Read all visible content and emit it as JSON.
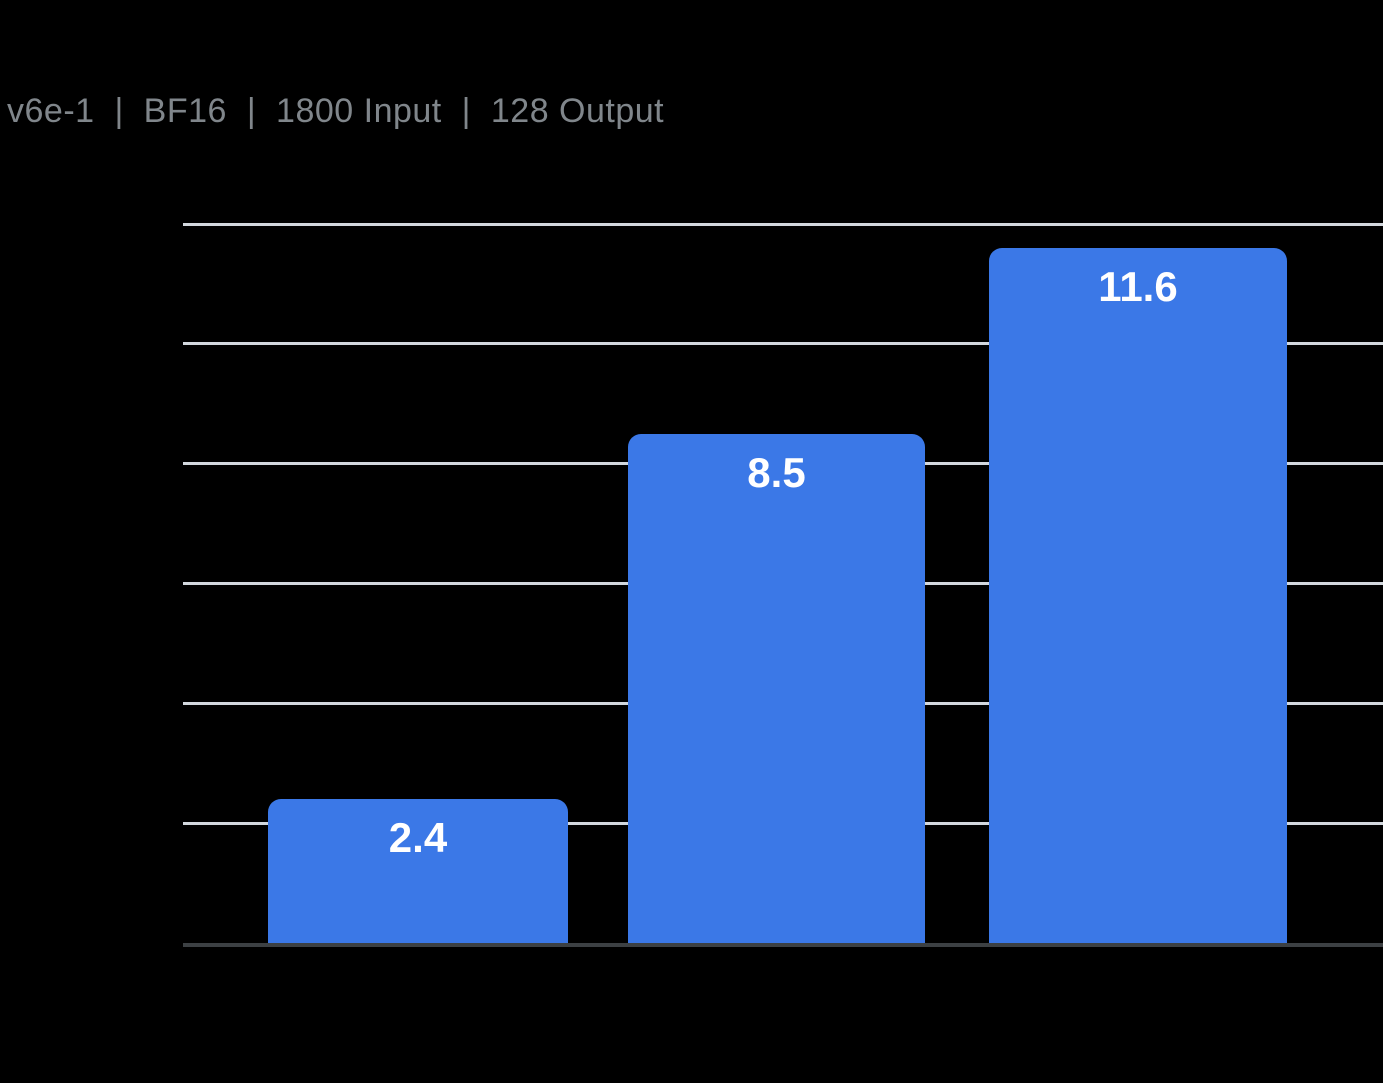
{
  "title": "v6e-1  |  BF16  |  1800 Input  |  128 Output",
  "colors": {
    "background": "#000000",
    "bar": "#3b78e7",
    "gridline": "#d3d8de",
    "axis": "#3c4043",
    "title_text": "#80868b",
    "value_label": "#ffffff"
  },
  "chart_data": {
    "type": "bar",
    "title": "v6e-1  |  BF16  |  1800 Input  |  128 Output",
    "values": [
      2.4,
      8.5,
      11.6
    ],
    "value_labels": [
      "2.4",
      "8.5",
      "11.6"
    ],
    "xlabel": "",
    "ylabel": "",
    "ylim": [
      0,
      12
    ],
    "gridline_step": 2,
    "grid": true,
    "legend": false,
    "axis_tick_labels_visible": false,
    "value_labels_position": "inside-top"
  }
}
